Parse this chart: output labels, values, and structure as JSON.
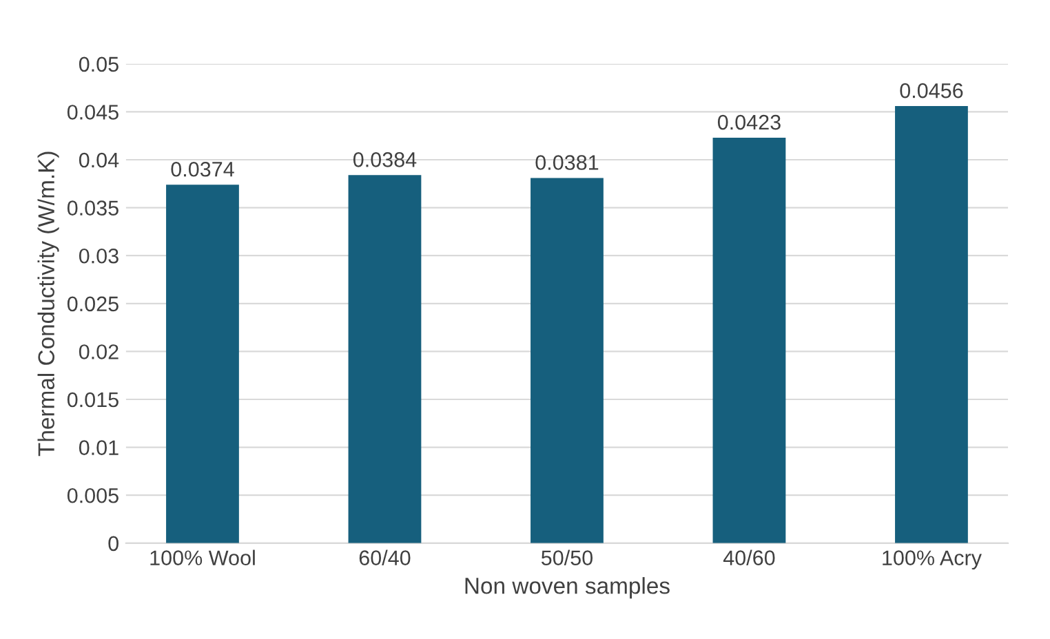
{
  "chart_data": {
    "type": "bar",
    "xlabel": "Non woven samples",
    "ylabel": "Thermal Conductivity (W/m.K)",
    "categories": [
      "100% Wool",
      "60/40",
      "50/50",
      "40/60",
      "100% Acry"
    ],
    "values": [
      0.0374,
      0.0384,
      0.0381,
      0.0423,
      0.0456
    ],
    "color": "#165f7d",
    "ylim": [
      0,
      0.05
    ],
    "yticks": [
      0,
      0.005,
      0.01,
      0.015,
      0.02,
      0.025,
      0.03,
      0.035,
      0.04,
      0.045,
      0.05
    ],
    "grid": "y",
    "data_labels": true
  }
}
